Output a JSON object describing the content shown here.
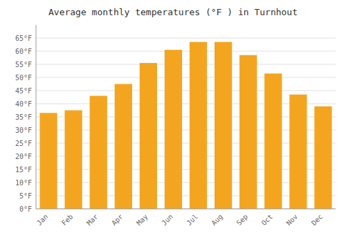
{
  "chart_data": {
    "type": "bar",
    "title": "Average monthly temperatures (°F ) in Turnhout",
    "categories": [
      "Jan",
      "Feb",
      "Mar",
      "Apr",
      "May",
      "Jun",
      "Jul",
      "Aug",
      "Sep",
      "Oct",
      "Nov",
      "Dec"
    ],
    "values": [
      36.5,
      37.5,
      43.0,
      47.5,
      55.5,
      60.5,
      63.5,
      63.5,
      58.5,
      51.5,
      43.5,
      39.0
    ],
    "color": "#F4A520",
    "ylim": [
      0,
      70
    ],
    "yticks": [
      {
        "value": 0,
        "label": "0°F"
      },
      {
        "value": 5,
        "label": "5°F"
      },
      {
        "value": 10,
        "label": "10°F"
      },
      {
        "value": 15,
        "label": "15°F"
      },
      {
        "value": 20,
        "label": "20°F"
      },
      {
        "value": 25,
        "label": "25°F"
      },
      {
        "value": 30,
        "label": "30°F"
      },
      {
        "value": 35,
        "label": "35°F"
      },
      {
        "value": 40,
        "label": "40°F"
      },
      {
        "value": 45,
        "label": "45°F"
      },
      {
        "value": 50,
        "label": "50°F"
      },
      {
        "value": 55,
        "label": "55°F"
      },
      {
        "value": 60,
        "label": "60°F"
      },
      {
        "value": 65,
        "label": "65°F"
      }
    ],
    "grid": true
  }
}
